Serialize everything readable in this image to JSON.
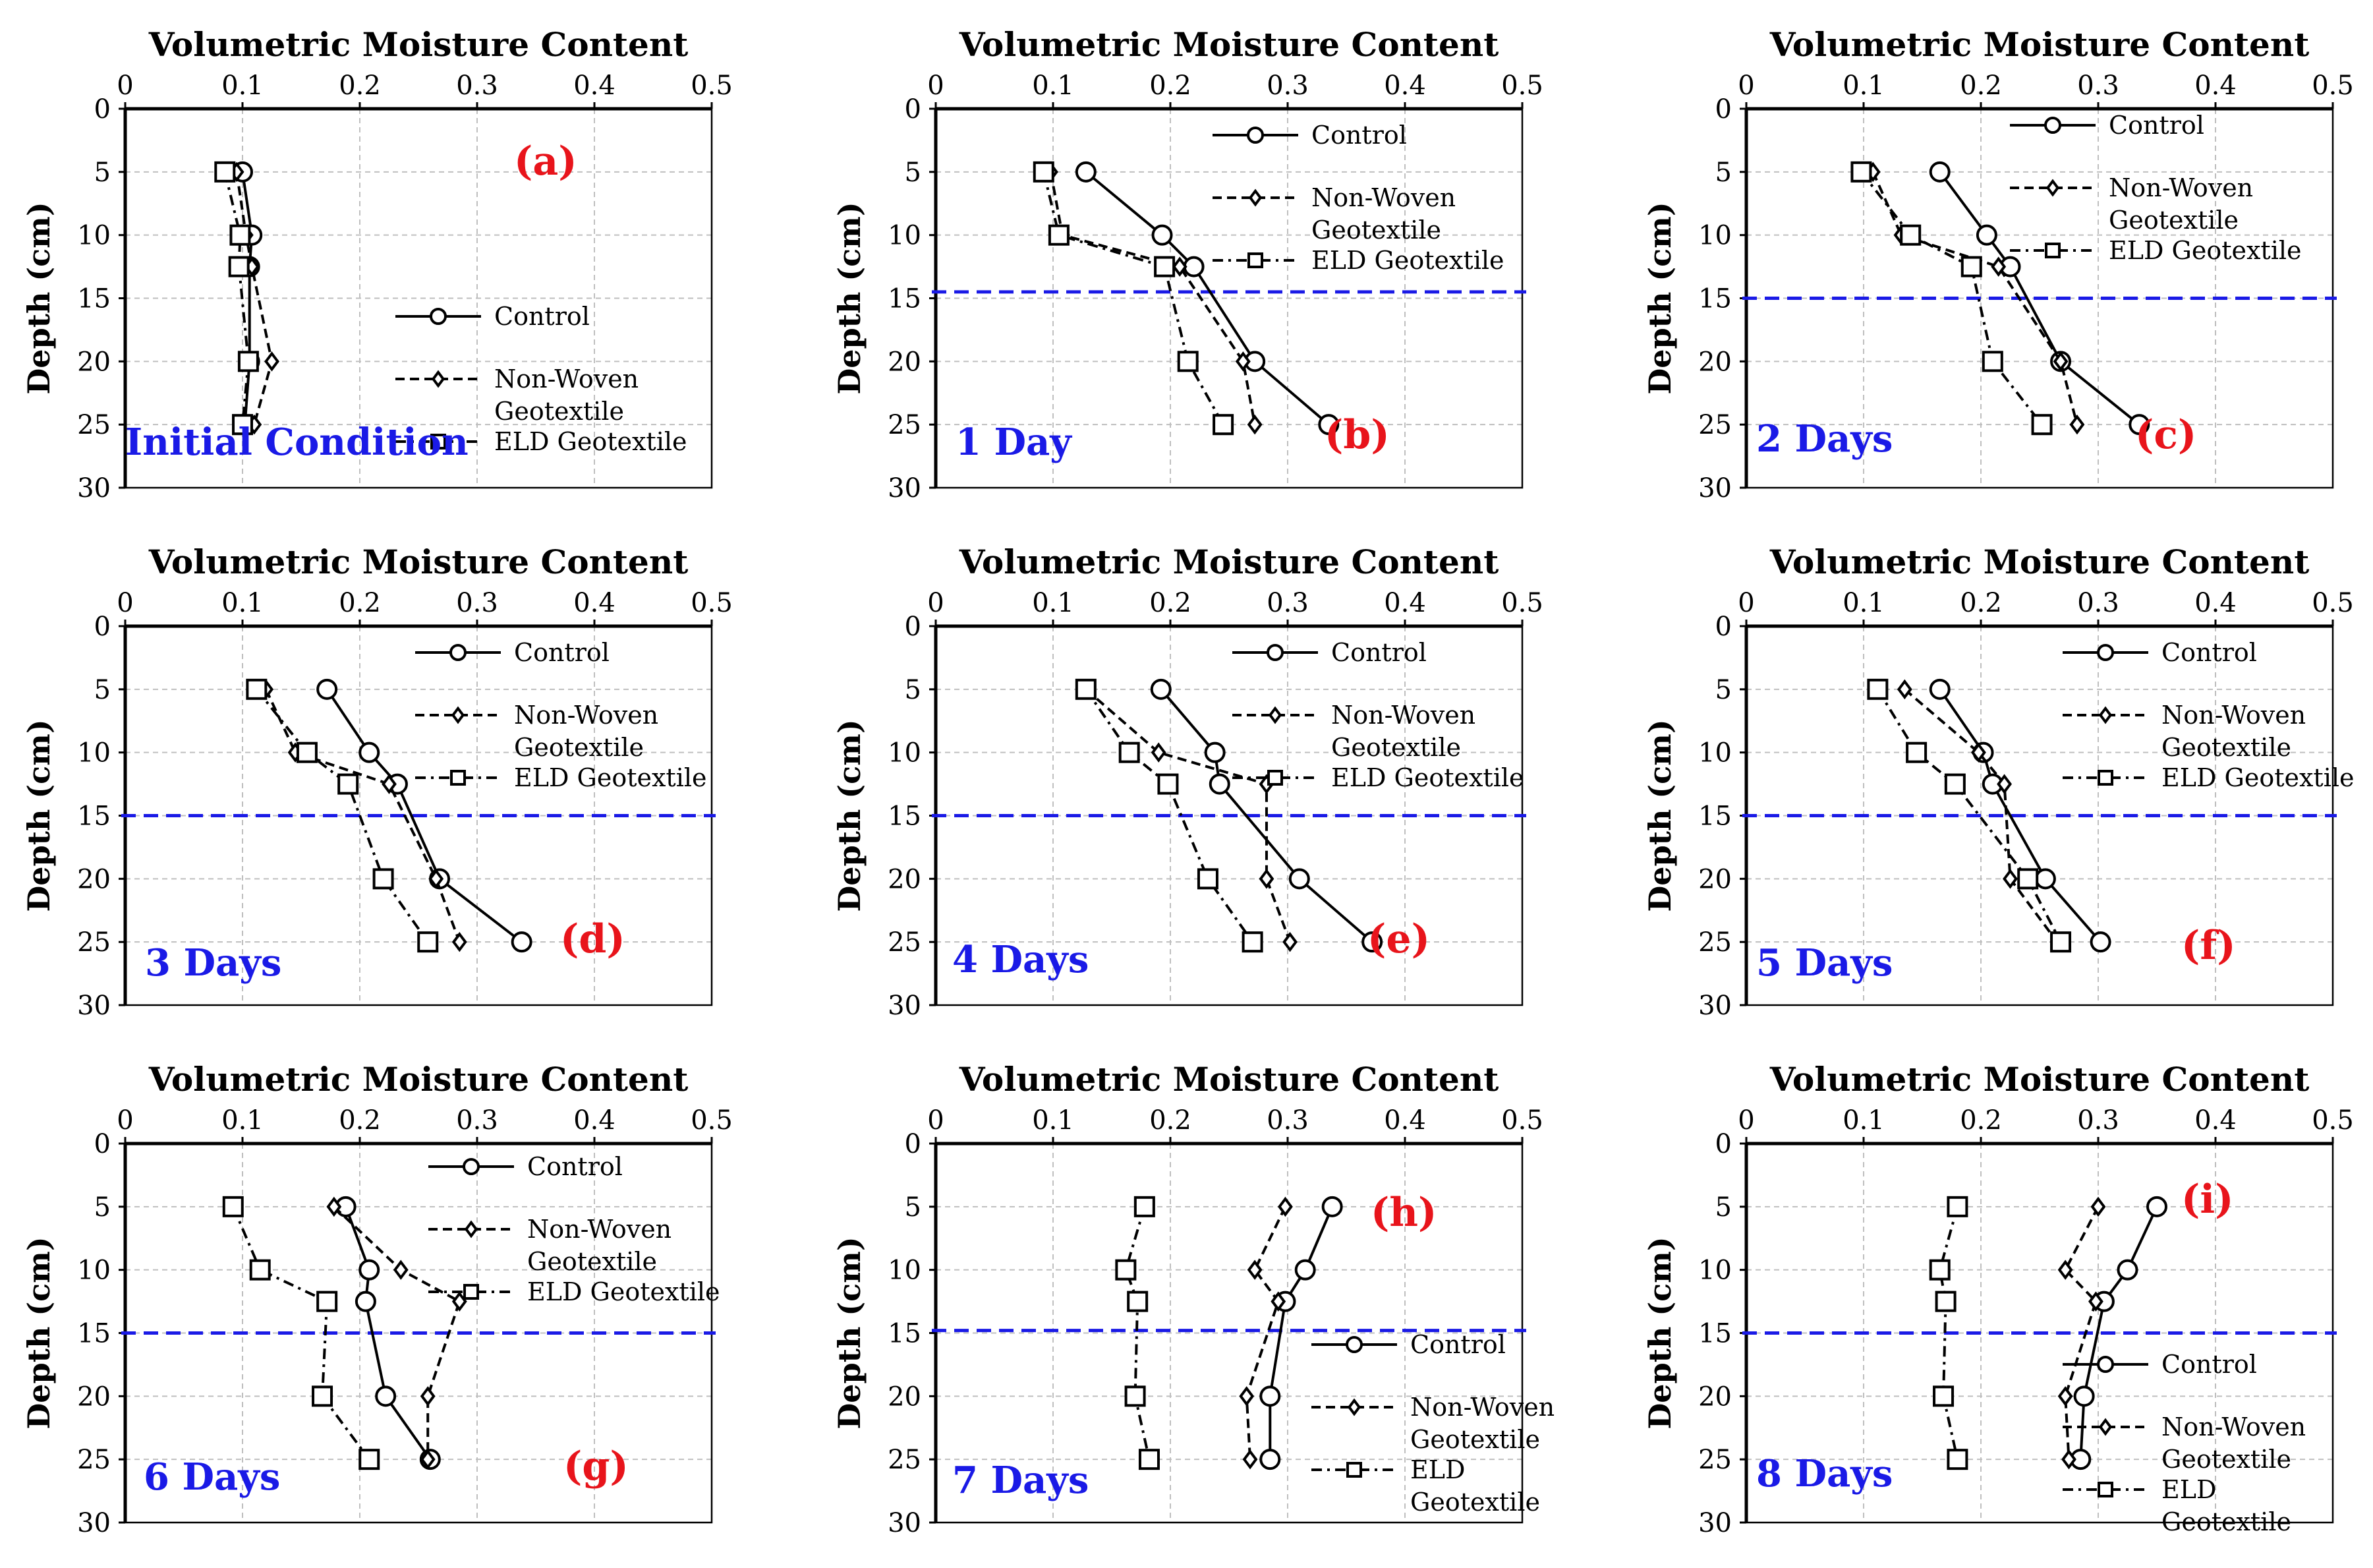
{
  "axis": {
    "x_title": "Volumetric Moisture Content",
    "y_title": "Depth (cm)",
    "x_ticks": [
      "0",
      "0.1",
      "0.2",
      "0.3",
      "0.4",
      "0.5"
    ],
    "y_ticks": [
      "0",
      "5",
      "10",
      "15",
      "20",
      "25",
      "30"
    ],
    "xlim": [
      0,
      0.5
    ],
    "ylim": [
      0,
      30
    ]
  },
  "legend": {
    "control": "Control",
    "nonwoven_line1": "Non-Woven",
    "nonwoven_line2": "Geotextile",
    "eld": "ELD Geotextile",
    "eld_line1": "ELD",
    "eld_line2": "Geotextile"
  },
  "colors": {
    "tag": "#e8141b",
    "condition": "#1a1ae6",
    "reference_line": "#1a1ae6",
    "grid": "#bfbfbf"
  },
  "chart_data": [
    {
      "type": "line",
      "panel": "(a)",
      "condition": "Initial Condition",
      "reference_depth": null,
      "series": [
        {
          "name": "Control",
          "x": [
            0.1,
            0.108,
            0.106,
            0.106,
            0.102
          ],
          "y": [
            5,
            10,
            12.5,
            20,
            25
          ]
        },
        {
          "name": "Non-Woven Geotextile",
          "x": [
            0.095,
            0.103,
            0.108,
            0.125,
            0.11
          ],
          "y": [
            5,
            10,
            12.5,
            20,
            25
          ]
        },
        {
          "name": "ELD Geotextile",
          "x": [
            0.085,
            0.098,
            0.097,
            0.105,
            0.1
          ],
          "y": [
            5,
            10,
            12.5,
            20,
            25
          ]
        }
      ]
    },
    {
      "type": "line",
      "panel": "(b)",
      "condition": "1 Day",
      "reference_depth": 14.5,
      "series": [
        {
          "name": "Control",
          "x": [
            0.128,
            0.193,
            0.22,
            0.272,
            0.335
          ],
          "y": [
            5,
            10,
            12.5,
            20,
            25
          ]
        },
        {
          "name": "Non-Woven Geotextile",
          "x": [
            0.098,
            0.108,
            0.208,
            0.262,
            0.272
          ],
          "y": [
            5,
            10,
            12.5,
            20,
            25
          ]
        },
        {
          "name": "ELD Geotextile",
          "x": [
            0.092,
            0.105,
            0.195,
            0.215,
            0.245
          ],
          "y": [
            5,
            10,
            12.5,
            20,
            25
          ]
        }
      ]
    },
    {
      "type": "line",
      "panel": "(c)",
      "condition": "2 Days",
      "reference_depth": 15,
      "series": [
        {
          "name": "Control",
          "x": [
            0.165,
            0.205,
            0.225,
            0.268,
            0.335
          ],
          "y": [
            5,
            10,
            12.5,
            20,
            25
          ]
        },
        {
          "name": "Non-Woven Geotextile",
          "x": [
            0.108,
            0.132,
            0.215,
            0.268,
            0.282
          ],
          "y": [
            5,
            10,
            12.5,
            20,
            25
          ]
        },
        {
          "name": "ELD Geotextile",
          "x": [
            0.098,
            0.14,
            0.192,
            0.21,
            0.252
          ],
          "y": [
            5,
            10,
            12.5,
            20,
            25
          ]
        }
      ]
    },
    {
      "type": "line",
      "panel": "(d)",
      "condition": "3 Days",
      "reference_depth": 15,
      "series": [
        {
          "name": "Control",
          "x": [
            0.172,
            0.208,
            0.232,
            0.268,
            0.338
          ],
          "y": [
            5,
            10,
            12.5,
            20,
            25
          ]
        },
        {
          "name": "Non-Woven Geotextile",
          "x": [
            0.12,
            0.145,
            0.225,
            0.265,
            0.285
          ],
          "y": [
            5,
            10,
            12.5,
            20,
            25
          ]
        },
        {
          "name": "ELD Geotextile",
          "x": [
            0.112,
            0.155,
            0.19,
            0.22,
            0.258
          ],
          "y": [
            5,
            10,
            12.5,
            20,
            25
          ]
        }
      ]
    },
    {
      "type": "line",
      "panel": "(e)",
      "condition": "4 Days",
      "reference_depth": 15,
      "series": [
        {
          "name": "Control",
          "x": [
            0.192,
            0.238,
            0.242,
            0.31,
            0.372
          ],
          "y": [
            5,
            10,
            12.5,
            20,
            25
          ]
        },
        {
          "name": "Non-Woven Geotextile",
          "x": [
            0.128,
            0.19,
            0.282,
            0.282,
            0.302
          ],
          "y": [
            5,
            10,
            12.5,
            20,
            25
          ]
        },
        {
          "name": "ELD Geotextile",
          "x": [
            0.128,
            0.165,
            0.198,
            0.232,
            0.27
          ],
          "y": [
            5,
            10,
            12.5,
            20,
            25
          ]
        }
      ]
    },
    {
      "type": "line",
      "panel": "(f)",
      "condition": "5 Days",
      "reference_depth": 15,
      "series": [
        {
          "name": "Control",
          "x": [
            0.165,
            0.202,
            0.21,
            0.255,
            0.302
          ],
          "y": [
            5,
            10,
            12.5,
            20,
            25
          ]
        },
        {
          "name": "Non-Woven Geotextile",
          "x": [
            0.135,
            0.198,
            0.22,
            0.225,
            0.265
          ],
          "y": [
            5,
            10,
            12.5,
            20,
            25
          ]
        },
        {
          "name": "ELD Geotextile",
          "x": [
            0.112,
            0.145,
            0.178,
            0.24,
            0.268
          ],
          "y": [
            5,
            10,
            12.5,
            20,
            25
          ]
        }
      ]
    },
    {
      "type": "line",
      "panel": "(g)",
      "condition": "6 Days",
      "reference_depth": 15,
      "series": [
        {
          "name": "Control",
          "x": [
            0.188,
            0.208,
            0.205,
            0.222,
            0.26
          ],
          "y": [
            5,
            10,
            12.5,
            20,
            25
          ]
        },
        {
          "name": "Non-Woven Geotextile",
          "x": [
            0.178,
            0.235,
            0.285,
            0.258,
            0.258
          ],
          "y": [
            5,
            10,
            12.5,
            20,
            25
          ]
        },
        {
          "name": "ELD Geotextile",
          "x": [
            0.092,
            0.115,
            0.172,
            0.168,
            0.208
          ],
          "y": [
            5,
            10,
            12.5,
            20,
            25
          ]
        }
      ]
    },
    {
      "type": "line",
      "panel": "(h)",
      "condition": "7 Days",
      "reference_depth": 14.8,
      "series": [
        {
          "name": "Control",
          "x": [
            0.338,
            0.315,
            0.298,
            0.285,
            0.285
          ],
          "y": [
            5,
            10,
            12.5,
            20,
            25
          ]
        },
        {
          "name": "Non-Woven Geotextile",
          "x": [
            0.298,
            0.272,
            0.292,
            0.265,
            0.268
          ],
          "y": [
            5,
            10,
            12.5,
            20,
            25
          ]
        },
        {
          "name": "ELD Geotextile",
          "x": [
            0.178,
            0.162,
            0.172,
            0.17,
            0.182
          ],
          "y": [
            5,
            10,
            12.5,
            20,
            25
          ]
        }
      ]
    },
    {
      "type": "line",
      "panel": "(i)",
      "condition": "8 Days",
      "reference_depth": 15,
      "series": [
        {
          "name": "Control",
          "x": [
            0.35,
            0.325,
            0.305,
            0.288,
            0.285
          ],
          "y": [
            5,
            10,
            12.5,
            20,
            25
          ]
        },
        {
          "name": "Non-Woven Geotextile",
          "x": [
            0.3,
            0.272,
            0.298,
            0.272,
            0.275
          ],
          "y": [
            5,
            10,
            12.5,
            20,
            25
          ]
        },
        {
          "name": "ELD Geotextile",
          "x": [
            0.18,
            0.165,
            0.17,
            0.168,
            0.18
          ],
          "y": [
            5,
            10,
            12.5,
            20,
            25
          ]
        }
      ]
    }
  ]
}
